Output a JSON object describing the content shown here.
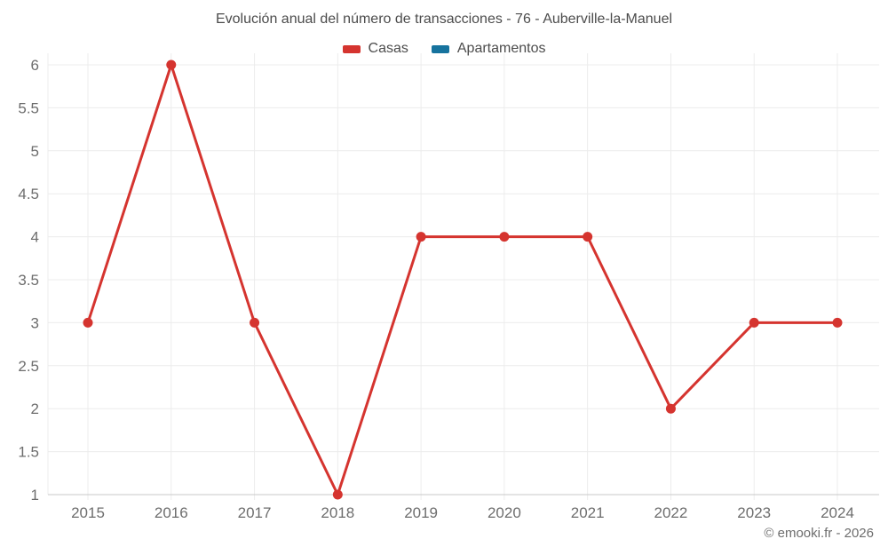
{
  "page": {
    "background_color": "#ffffff",
    "grid_color": "#ececec",
    "axis_line_color": "#c9c9c9",
    "title_color": "#4c4c4c",
    "tick_label_color": "#6d6d6d"
  },
  "chart_data": {
    "type": "line",
    "title": "Evolución anual del número de transacciones - 76 - Auberville-la-Manuel",
    "categories": [
      "2015",
      "2016",
      "2017",
      "2018",
      "2019",
      "2020",
      "2021",
      "2022",
      "2023",
      "2024"
    ],
    "series": [
      {
        "name": "Casas",
        "color": "#d5342f",
        "values": [
          3,
          6,
          3,
          1,
          4,
          4,
          4,
          2,
          3,
          3
        ]
      },
      {
        "name": "Apartamentos",
        "color": "#16739e",
        "values": []
      }
    ],
    "xlabel": "",
    "ylabel": "",
    "ylim": [
      1,
      6
    ],
    "ytick_step": 0.5,
    "ytick_labels": [
      "1",
      "1.5",
      "2",
      "2.5",
      "3",
      "3.5",
      "4",
      "4.5",
      "5",
      "5.5",
      "6"
    ],
    "grid": true,
    "legend_position": "top",
    "marker_radius": 5.5,
    "line_width": 3
  },
  "footer": {
    "copyright": "© emooki.fr - 2026"
  }
}
